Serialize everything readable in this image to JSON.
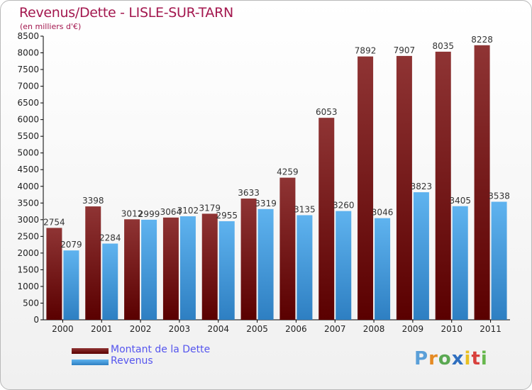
{
  "chart_data": {
    "type": "bar",
    "title": "Revenus/Dette - LISLE-SUR-TARN",
    "subtitle": "(en milliers d'€)",
    "categories": [
      "2000",
      "2001",
      "2002",
      "2003",
      "2004",
      "2005",
      "2006",
      "2007",
      "2008",
      "2009",
      "2010",
      "2011"
    ],
    "series": [
      {
        "name": "Montant de la Dette",
        "values": [
          2754,
          3398,
          3012,
          3064,
          3179,
          3633,
          4259,
          6053,
          7892,
          7907,
          8035,
          8228
        ],
        "color": "#6b0d0d"
      },
      {
        "name": "Revenus",
        "values": [
          2079,
          2284,
          2999,
          3102,
          2955,
          3319,
          3135,
          3260,
          3046,
          3823,
          3405,
          3538
        ],
        "color": "#3a95d8"
      }
    ],
    "ylim": [
      0,
      8500
    ],
    "yticks": [
      0,
      500,
      1000,
      1500,
      2000,
      2500,
      3000,
      3500,
      4000,
      4500,
      5000,
      5500,
      6000,
      6500,
      7000,
      7500,
      8000,
      8500
    ],
    "grid": false,
    "legend_position": "bottom-left",
    "data_labels": true
  },
  "branding": {
    "logo_text": "Proxiti"
  }
}
